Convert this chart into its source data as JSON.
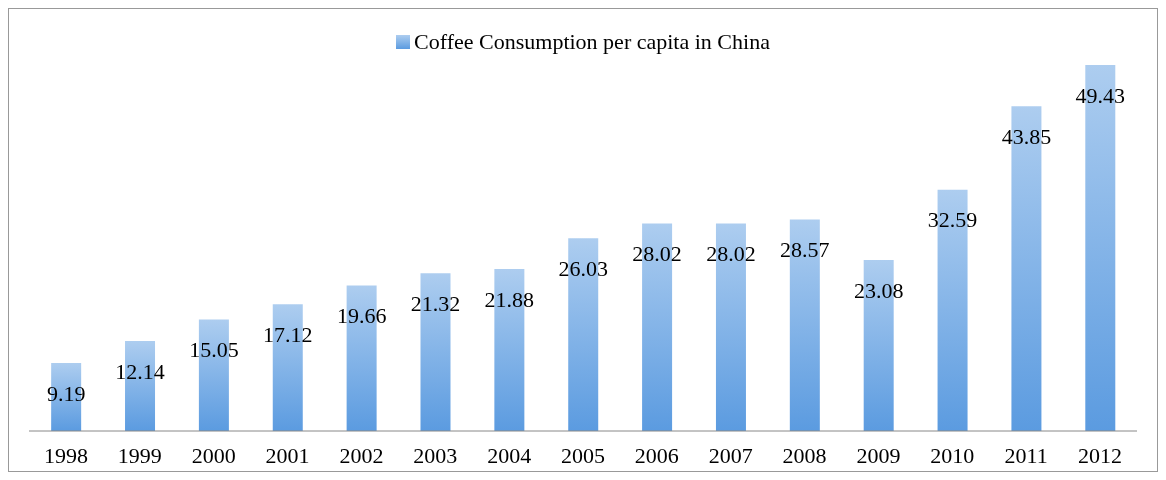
{
  "chart_data": {
    "type": "bar",
    "categories": [
      "1998",
      "1999",
      "2000",
      "2001",
      "2002",
      "2003",
      "2004",
      "2005",
      "2006",
      "2007",
      "2008",
      "2009",
      "2010",
      "2011",
      "2012"
    ],
    "series": [
      {
        "name": "Coffee Consumption per capita in China",
        "color": "#5b9be0",
        "values": [
          9.19,
          12.14,
          15.05,
          17.12,
          19.66,
          21.32,
          21.88,
          26.03,
          28.02,
          28.02,
          28.57,
          23.08,
          32.59,
          43.85,
          49.43
        ]
      }
    ],
    "data_labels": true,
    "legend": "top",
    "grid": false
  }
}
